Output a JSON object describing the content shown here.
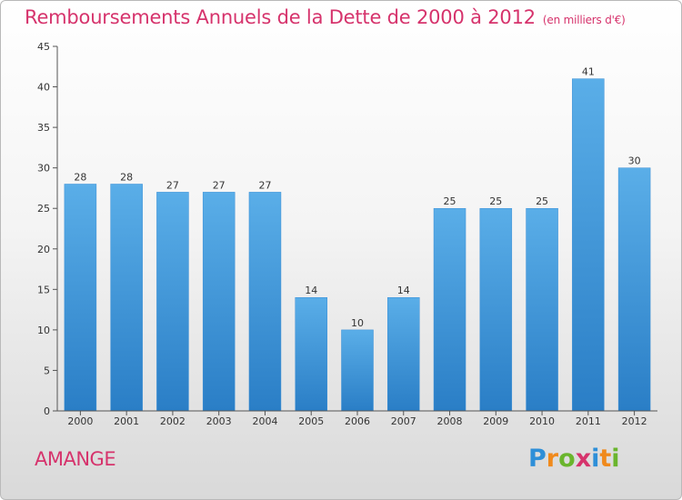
{
  "header": {
    "title": "Remboursements Annuels de la Dette de 2000 à 2012",
    "subtitle": "(en milliers d'€)"
  },
  "commune": "AMANGE",
  "logo": {
    "text": "Proxiti",
    "letters": [
      "P",
      "r",
      "o",
      "x",
      "i",
      "t",
      "i"
    ]
  },
  "colors": {
    "accent": "#d6336c",
    "bar_light": "#5aaee8",
    "bar_dark": "#2a7ec6",
    "axis": "#555555",
    "grid": "#c8c8c8"
  },
  "chart_data": {
    "type": "bar",
    "title": "Remboursements Annuels de la Dette de 2000 à 2012",
    "xlabel": "",
    "ylabel": "",
    "categories": [
      "2000",
      "2001",
      "2002",
      "2003",
      "2004",
      "2005",
      "2006",
      "2007",
      "2008",
      "2009",
      "2010",
      "2011",
      "2012"
    ],
    "values": [
      28,
      28,
      27,
      27,
      27,
      14,
      10,
      14,
      25,
      25,
      25,
      41,
      30
    ],
    "ylim": [
      0,
      45
    ],
    "yticks": [
      0,
      5,
      10,
      15,
      20,
      25,
      30,
      35,
      40,
      45
    ],
    "grid": false,
    "data_labels": true
  }
}
